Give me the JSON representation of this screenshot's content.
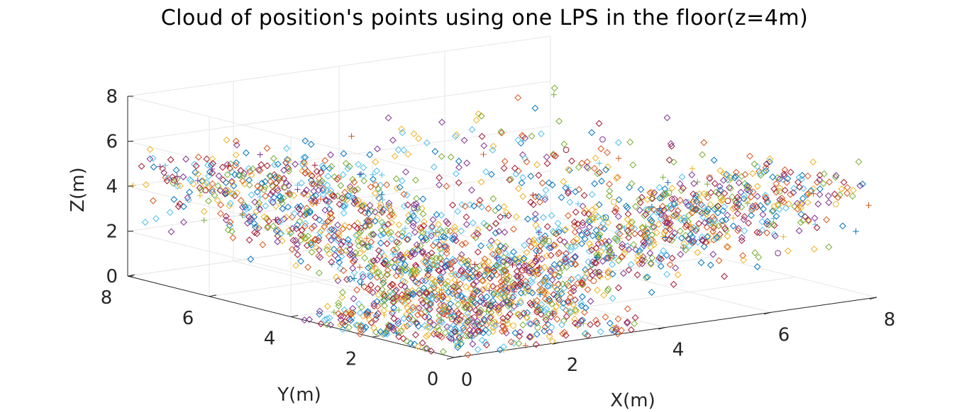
{
  "chart_data": {
    "type": "scatter",
    "projection": "3d",
    "title": "Cloud of position's points using one LPS in the floor(z=4m)",
    "xlabel": "X(m)",
    "ylabel": "Y(m)",
    "zlabel": "Z(m)",
    "xlim": [
      0,
      8
    ],
    "ylim": [
      0,
      8
    ],
    "zlim": [
      0,
      8
    ],
    "xticks": [
      "0",
      "2",
      "4",
      "6",
      "8"
    ],
    "yticks": [
      "0",
      "2",
      "4",
      "6",
      "8"
    ],
    "zticks": [
      "0",
      "2",
      "4",
      "6",
      "8"
    ],
    "grid": true,
    "markers": [
      "diamond",
      "plus",
      "circle"
    ],
    "colors": [
      "#0072bd",
      "#d95319",
      "#edb120",
      "#7e2f8e",
      "#77ac30",
      "#4dbeee",
      "#a2142f"
    ],
    "approx_point_count": 2500,
    "sample_points": [
      {
        "x": 4.0,
        "y": 0.0,
        "z": 4.0
      },
      {
        "x": 8.0,
        "y": 0.2,
        "z": 4.0
      },
      {
        "x": 0.1,
        "y": 8.0,
        "z": 4.0
      },
      {
        "x": 0.3,
        "y": 0.4,
        "z": 0.5
      },
      {
        "x": 7.6,
        "y": 7.4,
        "z": 5.8
      }
    ]
  }
}
